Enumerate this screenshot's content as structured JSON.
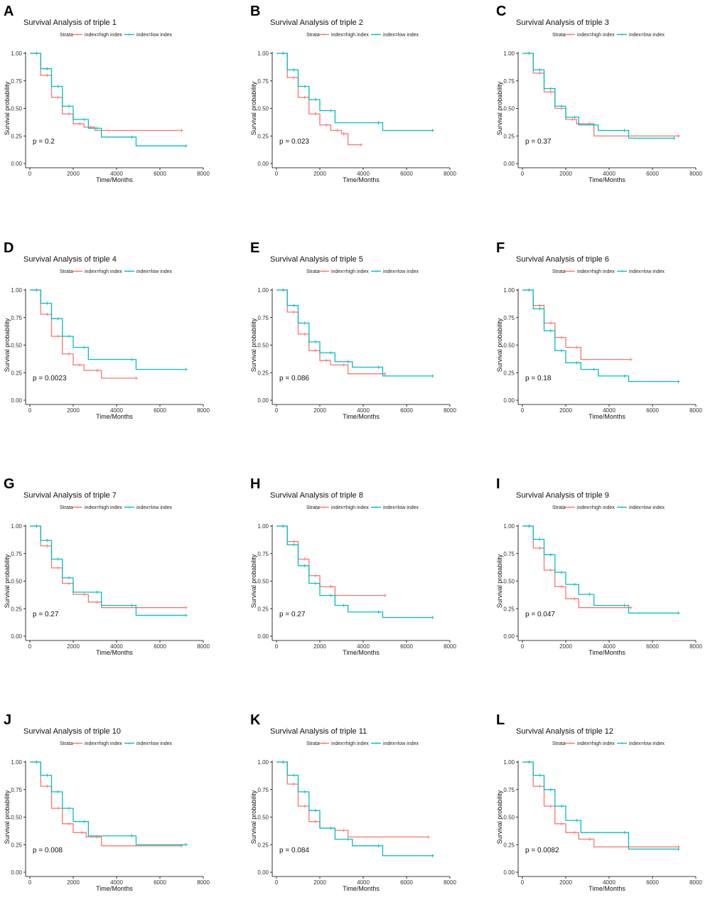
{
  "figure": {
    "legend_title": "Strata",
    "legend_labels": [
      "index=high index",
      "index=low index"
    ],
    "colors": {
      "high": "#F8766D",
      "low": "#00BFC4",
      "axis": "#000000",
      "text": "#111111"
    }
  },
  "chart_data": [
    {
      "panel": "A",
      "type": "line",
      "title": "Survival Analysis of triple 1",
      "xlabel": "Time/Months",
      "ylabel": "Survival probability",
      "xticks": [
        0,
        2000,
        4000,
        6000,
        8000
      ],
      "yticks": [
        "0.00",
        "0.25",
        "0.50",
        "0.75",
        "1.00"
      ],
      "xlim": [
        0,
        8000
      ],
      "ylim": [
        0,
        1
      ],
      "p_value": "p = 0.2",
      "series": [
        {
          "name": "index=high index",
          "x": [
            0,
            500,
            1000,
            1500,
            2000,
            2500,
            3000,
            7000
          ],
          "y": [
            1.0,
            0.8,
            0.6,
            0.45,
            0.36,
            0.33,
            0.3,
            0.3
          ]
        },
        {
          "name": "index=low index",
          "x": [
            0,
            500,
            1000,
            1500,
            2000,
            2700,
            3300,
            4900,
            7200
          ],
          "y": [
            1.0,
            0.86,
            0.7,
            0.52,
            0.4,
            0.32,
            0.24,
            0.16,
            0.16
          ]
        }
      ]
    },
    {
      "panel": "B",
      "type": "line",
      "title": "Survival Analysis of triple 2",
      "xlabel": "Time/Months",
      "ylabel": "Survival probability",
      "xticks": [
        0,
        2000,
        4000,
        6000,
        8000
      ],
      "yticks": [
        "0.00",
        "0.25",
        "0.50",
        "0.75",
        "1.00"
      ],
      "xlim": [
        0,
        8000
      ],
      "ylim": [
        0,
        1
      ],
      "p_value": "p = 0.023",
      "series": [
        {
          "name": "index=high index",
          "x": [
            0,
            500,
            1000,
            1500,
            2000,
            2500,
            3000,
            3300,
            3900
          ],
          "y": [
            1.0,
            0.78,
            0.6,
            0.45,
            0.35,
            0.3,
            0.27,
            0.17,
            0.17
          ]
        },
        {
          "name": "index=low index",
          "x": [
            0,
            500,
            1000,
            1500,
            2000,
            2700,
            4900,
            7200
          ],
          "y": [
            1.0,
            0.85,
            0.7,
            0.58,
            0.48,
            0.37,
            0.3,
            0.3
          ]
        }
      ]
    },
    {
      "panel": "C",
      "type": "line",
      "title": "Survival Analysis of triple 3",
      "xlabel": "Time/Months",
      "ylabel": "Survival probability",
      "xticks": [
        0,
        2000,
        4000,
        6000,
        8000
      ],
      "yticks": [
        "0.00",
        "0.25",
        "0.50",
        "0.75",
        "1.00"
      ],
      "xlim": [
        0,
        8000
      ],
      "ylim": [
        0,
        1
      ],
      "p_value": "p = 0.37",
      "series": [
        {
          "name": "index=high index",
          "x": [
            0,
            500,
            1000,
            1500,
            2000,
            2500,
            3300,
            7200
          ],
          "y": [
            1.0,
            0.82,
            0.65,
            0.5,
            0.4,
            0.36,
            0.25,
            0.25
          ]
        },
        {
          "name": "index=low index",
          "x": [
            0,
            500,
            1000,
            1500,
            2000,
            2600,
            3500,
            4900,
            7000
          ],
          "y": [
            1.0,
            0.85,
            0.68,
            0.52,
            0.42,
            0.35,
            0.3,
            0.23,
            0.23
          ]
        }
      ]
    },
    {
      "panel": "D",
      "type": "line",
      "title": "Survival Analysis of triple 4",
      "xlabel": "Time/Months",
      "ylabel": "Survival probability",
      "xticks": [
        0,
        2000,
        4000,
        6000,
        8000
      ],
      "yticks": [
        "0.00",
        "0.25",
        "0.50",
        "0.75",
        "1.00"
      ],
      "xlim": [
        0,
        8000
      ],
      "ylim": [
        0,
        1
      ],
      "p_value": "p = 0.0023",
      "series": [
        {
          "name": "index=high index",
          "x": [
            0,
            500,
            1000,
            1500,
            2000,
            2500,
            3300,
            4900
          ],
          "y": [
            1.0,
            0.78,
            0.58,
            0.42,
            0.32,
            0.27,
            0.2,
            0.2
          ]
        },
        {
          "name": "index=low index",
          "x": [
            0,
            500,
            1000,
            1500,
            2000,
            2700,
            4900,
            7200
          ],
          "y": [
            1.0,
            0.88,
            0.74,
            0.58,
            0.48,
            0.37,
            0.28,
            0.28
          ]
        }
      ]
    },
    {
      "panel": "E",
      "type": "line",
      "title": "Survival Analysis of triple 5",
      "xlabel": "Time/Months",
      "ylabel": "Survival probability",
      "xticks": [
        0,
        2000,
        4000,
        6000,
        8000
      ],
      "yticks": [
        "0.00",
        "0.25",
        "0.50",
        "0.75",
        "1.00"
      ],
      "xlim": [
        0,
        8000
      ],
      "ylim": [
        0,
        1
      ],
      "p_value": "p = 0.086",
      "series": [
        {
          "name": "index=high index",
          "x": [
            0,
            500,
            1000,
            1500,
            2000,
            2500,
            3300,
            5000
          ],
          "y": [
            1.0,
            0.8,
            0.6,
            0.45,
            0.36,
            0.32,
            0.24,
            0.24
          ]
        },
        {
          "name": "index=low index",
          "x": [
            0,
            500,
            1000,
            1500,
            2000,
            2700,
            3500,
            4900,
            7200
          ],
          "y": [
            1.0,
            0.86,
            0.7,
            0.53,
            0.43,
            0.35,
            0.3,
            0.22,
            0.22
          ]
        }
      ]
    },
    {
      "panel": "F",
      "type": "line",
      "title": "Survival Analysis of triple 6",
      "xlabel": "Time/Months",
      "ylabel": "Survival probability",
      "xticks": [
        0,
        2000,
        4000,
        6000,
        8000
      ],
      "yticks": [
        "0.00",
        "0.25",
        "0.50",
        "0.75",
        "1.00"
      ],
      "xlim": [
        0,
        8000
      ],
      "ylim": [
        0,
        1
      ],
      "p_value": "p = 0.18",
      "series": [
        {
          "name": "index=high index",
          "x": [
            0,
            500,
            1000,
            1500,
            2000,
            2700,
            5000
          ],
          "y": [
            1.0,
            0.86,
            0.7,
            0.57,
            0.48,
            0.37,
            0.37
          ]
        },
        {
          "name": "index=low index",
          "x": [
            0,
            500,
            1000,
            1500,
            2000,
            2700,
            3500,
            4900,
            7200
          ],
          "y": [
            1.0,
            0.83,
            0.63,
            0.45,
            0.34,
            0.28,
            0.22,
            0.17,
            0.17
          ]
        }
      ]
    },
    {
      "panel": "G",
      "type": "line",
      "title": "Survival Analysis of triple 7",
      "xlabel": "Time/Months",
      "ylabel": "Survival probability",
      "xticks": [
        0,
        2000,
        4000,
        6000,
        8000
      ],
      "yticks": [
        "0.00",
        "0.25",
        "0.50",
        "0.75",
        "1.00"
      ],
      "xlim": [
        0,
        8000
      ],
      "ylim": [
        0,
        1
      ],
      "p_value": "p = 0.27",
      "series": [
        {
          "name": "index=high index",
          "x": [
            0,
            500,
            1000,
            1500,
            2000,
            2700,
            3300,
            7200
          ],
          "y": [
            1.0,
            0.82,
            0.62,
            0.48,
            0.38,
            0.31,
            0.26,
            0.26
          ]
        },
        {
          "name": "index=low index",
          "x": [
            0,
            500,
            1000,
            1500,
            2000,
            3300,
            4900,
            7200
          ],
          "y": [
            1.0,
            0.87,
            0.7,
            0.53,
            0.4,
            0.28,
            0.19,
            0.19
          ]
        }
      ]
    },
    {
      "panel": "H",
      "type": "line",
      "title": "Survival Analysis of triple 8",
      "xlabel": "Time/Months",
      "ylabel": "Survival probability",
      "xticks": [
        0,
        2000,
        4000,
        6000,
        8000
      ],
      "yticks": [
        "0.00",
        "0.25",
        "0.50",
        "0.75",
        "1.00"
      ],
      "xlim": [
        0,
        8000
      ],
      "ylim": [
        0,
        1
      ],
      "p_value": "p = 0.27",
      "series": [
        {
          "name": "index=high index",
          "x": [
            0,
            500,
            1000,
            1500,
            2000,
            2700,
            5000
          ],
          "y": [
            1.0,
            0.86,
            0.7,
            0.55,
            0.45,
            0.37,
            0.37
          ]
        },
        {
          "name": "index=low index",
          "x": [
            0,
            500,
            1000,
            1500,
            2000,
            2700,
            3300,
            4900,
            7200
          ],
          "y": [
            1.0,
            0.83,
            0.64,
            0.48,
            0.37,
            0.28,
            0.22,
            0.17,
            0.17
          ]
        }
      ]
    },
    {
      "panel": "I",
      "type": "line",
      "title": "Survival Analysis of triple 9",
      "xlabel": "Time/Months",
      "ylabel": "Survival probability",
      "xticks": [
        0,
        2000,
        4000,
        6000,
        8000
      ],
      "yticks": [
        "0.00",
        "0.25",
        "0.50",
        "0.75",
        "1.00"
      ],
      "xlim": [
        0,
        8000
      ],
      "ylim": [
        0,
        1
      ],
      "p_value": "p = 0.047",
      "series": [
        {
          "name": "index=high index",
          "x": [
            0,
            500,
            1000,
            1500,
            2000,
            2600,
            5000
          ],
          "y": [
            1.0,
            0.8,
            0.6,
            0.45,
            0.34,
            0.26,
            0.26
          ]
        },
        {
          "name": "index=low index",
          "x": [
            0,
            500,
            1000,
            1500,
            2000,
            2600,
            3300,
            4900,
            7200
          ],
          "y": [
            1.0,
            0.88,
            0.74,
            0.58,
            0.47,
            0.38,
            0.28,
            0.21,
            0.21
          ]
        }
      ]
    },
    {
      "panel": "J",
      "type": "line",
      "title": "Survival Analysis of triple 10",
      "xlabel": "Time/Months",
      "ylabel": "Survival probability",
      "xticks": [
        0,
        2000,
        4000,
        6000,
        8000
      ],
      "yticks": [
        "0.00",
        "0.25",
        "0.50",
        "0.75",
        "1.00"
      ],
      "xlim": [
        0,
        8000
      ],
      "ylim": [
        0,
        1
      ],
      "p_value": "p = 0.008",
      "series": [
        {
          "name": "index=high index",
          "x": [
            0,
            500,
            1000,
            1500,
            2000,
            2600,
            3300,
            7000
          ],
          "y": [
            1.0,
            0.78,
            0.58,
            0.44,
            0.36,
            0.32,
            0.24,
            0.24
          ]
        },
        {
          "name": "index=low index",
          "x": [
            0,
            500,
            1000,
            1500,
            2000,
            2700,
            4900,
            7200
          ],
          "y": [
            1.0,
            0.88,
            0.73,
            0.58,
            0.46,
            0.33,
            0.25,
            0.25
          ]
        }
      ]
    },
    {
      "panel": "K",
      "type": "line",
      "title": "Survival Analysis of triple 11",
      "xlabel": "Time/Months",
      "ylabel": "Survival probability",
      "xticks": [
        0,
        2000,
        4000,
        6000,
        8000
      ],
      "yticks": [
        "0.00",
        "0.25",
        "0.50",
        "0.75",
        "1.00"
      ],
      "xlim": [
        0,
        8000
      ],
      "ylim": [
        0,
        1
      ],
      "p_value": "p = 0.084",
      "series": [
        {
          "name": "index=high index",
          "x": [
            0,
            500,
            1000,
            1500,
            2000,
            2700,
            3300,
            7000
          ],
          "y": [
            1.0,
            0.8,
            0.6,
            0.46,
            0.4,
            0.38,
            0.32,
            0.32
          ]
        },
        {
          "name": "index=low index",
          "x": [
            0,
            500,
            1000,
            1500,
            2000,
            2700,
            3500,
            4900,
            7200
          ],
          "y": [
            1.0,
            0.88,
            0.73,
            0.56,
            0.4,
            0.3,
            0.24,
            0.15,
            0.15
          ]
        }
      ]
    },
    {
      "panel": "L",
      "type": "line",
      "title": "Survival Analysis of triple 12",
      "xlabel": "Time/Months",
      "ylabel": "Survival probability",
      "xticks": [
        0,
        2000,
        4000,
        6000,
        8000
      ],
      "yticks": [
        "0.00",
        "0.25",
        "0.50",
        "0.75",
        "1.00"
      ],
      "xlim": [
        0,
        8000
      ],
      "ylim": [
        0,
        1
      ],
      "p_value": "p = 0.0082",
      "series": [
        {
          "name": "index=high index",
          "x": [
            0,
            500,
            1000,
            1500,
            2000,
            2600,
            3300,
            7200
          ],
          "y": [
            1.0,
            0.78,
            0.6,
            0.44,
            0.36,
            0.3,
            0.23,
            0.23
          ]
        },
        {
          "name": "index=low index",
          "x": [
            0,
            500,
            1000,
            1500,
            2000,
            2700,
            4900,
            7200
          ],
          "y": [
            1.0,
            0.88,
            0.75,
            0.6,
            0.47,
            0.36,
            0.21,
            0.21
          ]
        }
      ]
    }
  ]
}
